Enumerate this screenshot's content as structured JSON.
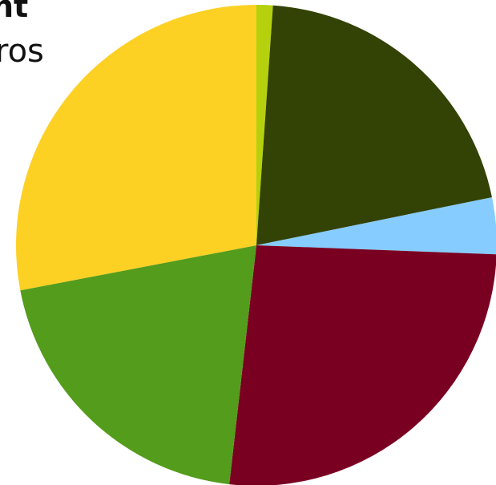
{
  "chart_data": {
    "type": "pie",
    "text_fragments": [
      "nt",
      "ros"
    ],
    "slices": [
      {
        "value": 1.1,
        "color": "#b5d10e"
      },
      {
        "value": 20.7,
        "color": "#334205"
      },
      {
        "value": 3.8,
        "color": "#86ccff"
      },
      {
        "value": 26.2,
        "color": "#7a0022"
      },
      {
        "value": 20.2,
        "color": "#549c1c"
      },
      {
        "value": 28.0,
        "color": "#fdd024"
      }
    ],
    "start_angle_deg": 0,
    "direction": "clockwise"
  }
}
